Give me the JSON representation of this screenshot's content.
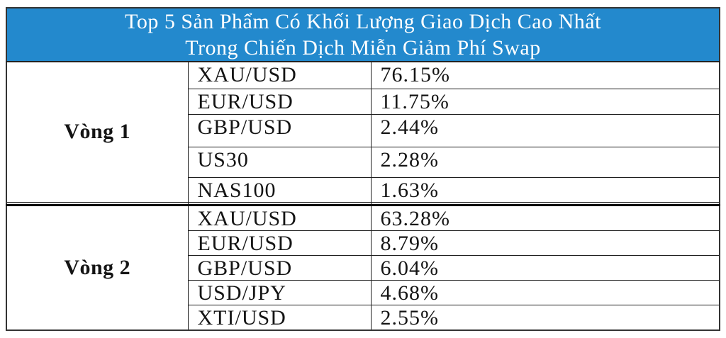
{
  "colors": {
    "header_bg": "#2389CD",
    "header_text": "#FFFFFF",
    "border_color": "#1E1E1E"
  },
  "table": {
    "title_line1": "Top 5 Sản Phẩm Có Khối Lượng Giao Dịch Cao Nhất",
    "title_line2": "Trong Chiến Dịch Miễn Giảm Phí Swap",
    "columns": [
      "round",
      "product",
      "volume_share"
    ],
    "sections": [
      {
        "label": "Vòng 1",
        "rows": [
          {
            "product": "XAU/USD",
            "share": "76.15%"
          },
          {
            "product": "EUR/USD",
            "share": "11.75%"
          },
          {
            "product": "GBP/USD",
            "share": "2.44%"
          },
          {
            "product": "US30",
            "share": "2.28%"
          },
          {
            "product": "NAS100",
            "share": "1.63%"
          }
        ]
      },
      {
        "label": "Vòng 2",
        "rows": [
          {
            "product": "XAU/USD",
            "share": "63.28%"
          },
          {
            "product": "EUR/USD",
            "share": "8.79%"
          },
          {
            "product": "GBP/USD",
            "share": "6.04%"
          },
          {
            "product": "USD/JPY",
            "share": "4.68%"
          },
          {
            "product": "XTI/USD",
            "share": "2.55%"
          }
        ]
      }
    ]
  }
}
